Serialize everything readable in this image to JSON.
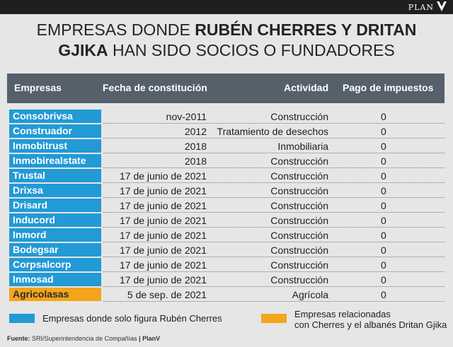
{
  "brand": {
    "name": "PLAN",
    "mark": "V"
  },
  "title": {
    "part1": "EMPRESAS DONDE ",
    "bold1": "RUBÉN CHERRES Y DRITAN",
    "bold2": "GJIKA",
    "part2": " HAN SIDO SOCIOS O FUNDADORES"
  },
  "table": {
    "headers": {
      "company": "Empresas",
      "date": "Fecha de constitución",
      "activity": "Actividad",
      "tax": "Pago de impuestos"
    },
    "rows": [
      {
        "company": "Consobrivsa",
        "date": "nov-2011",
        "activity": "Construcción",
        "tax": "0",
        "group": "blue"
      },
      {
        "company": "Construador",
        "date": "2012",
        "activity": "Tratamiento de desechos",
        "tax": "0",
        "group": "blue"
      },
      {
        "company": "Inmobitrust",
        "date": "2018",
        "activity": "Inmobiliaria",
        "tax": "0",
        "group": "blue"
      },
      {
        "company": "Inmobirealstate",
        "date": "2018",
        "activity": "Construcción",
        "tax": "0",
        "group": "blue"
      },
      {
        "company": "Trustal",
        "date": "17 de junio de 2021",
        "activity": "Construcción",
        "tax": "0",
        "group": "blue"
      },
      {
        "company": "Drixsa",
        "date": "17 de junio de 2021",
        "activity": "Construcción",
        "tax": "0",
        "group": "blue"
      },
      {
        "company": "Drisard",
        "date": "17 de junio de 2021",
        "activity": "Construcción",
        "tax": "0",
        "group": "blue"
      },
      {
        "company": "Inducord",
        "date": "17 de junio de 2021",
        "activity": "Construcción",
        "tax": "0",
        "group": "blue"
      },
      {
        "company": "Inmord",
        "date": "17 de junio de 2021",
        "activity": "Construcción",
        "tax": "0",
        "group": "blue"
      },
      {
        "company": "Bodegsar",
        "date": "17 de junio de 2021",
        "activity": "Construcción",
        "tax": "0",
        "group": "blue"
      },
      {
        "company": "Corpsalcorp",
        "date": "17 de junio de 2021",
        "activity": "Construcción",
        "tax": "0",
        "group": "blue"
      },
      {
        "company": "Inmosad",
        "date": "17 de junio de 2021",
        "activity": "Construcción",
        "tax": "0",
        "group": "blue"
      },
      {
        "company": "Agricolasas",
        "date": "5 de sep. de 2021",
        "activity": "Agrícola",
        "tax": "0",
        "group": "orange"
      }
    ]
  },
  "legend": {
    "blue_label": "Empresas donde solo figura Rubén Cherres",
    "orange_line1": "Empresas relacionadas",
    "orange_line2": "con Cherres y el albanés Dritan Gjika"
  },
  "source": {
    "label": "Fuente:",
    "text": " SRI/Superintendencia de Compañías",
    "separator": " | ",
    "brand": "PlanV"
  },
  "colors": {
    "blue": "#229ad6",
    "orange": "#f4a51c",
    "header_bg": "#55606a",
    "topbar": "#1f1f1f",
    "background": "#e6e6e6"
  }
}
